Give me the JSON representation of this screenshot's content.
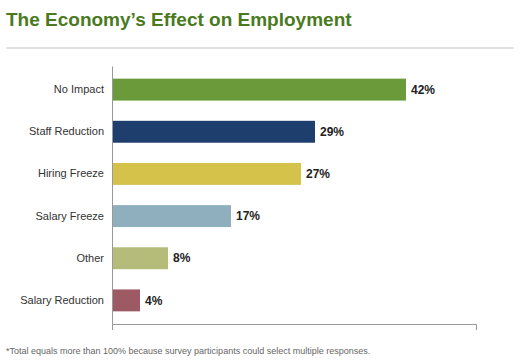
{
  "chart_data": {
    "type": "bar",
    "orientation": "horizontal",
    "title": "The Economy’s Effect on Employment",
    "annotations": [
      "*Total equals more than 100% because survey participants could select multiple responses."
    ],
    "categories": [
      "No Impact",
      "Staff Reduction",
      "Hiring Freeze",
      "Salary Freeze",
      "Other",
      "Salary Reduction"
    ],
    "values": [
      42,
      29,
      27,
      17,
      8,
      4
    ],
    "value_labels": [
      "42%",
      "29%",
      "27%",
      "17%",
      "8%",
      "4%"
    ],
    "colors": [
      "#6a9a3a",
      "#1e3f6e",
      "#d4c24a",
      "#8fafbf",
      "#b5bc7a",
      "#9e5a64"
    ],
    "xlim": [
      0,
      52
    ],
    "xticks": [],
    "tick_labels": "y",
    "data_labels": true,
    "grid": false
  }
}
